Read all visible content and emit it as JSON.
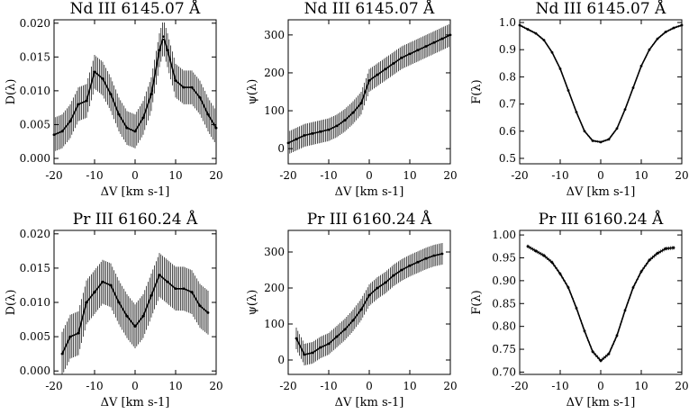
{
  "chart_data": [
    {
      "id": "nd-d",
      "type": "line",
      "title": "Nd III 6145.07 Å",
      "xlabel": "ΔV [km s-1]",
      "ylabel": "D(λ)",
      "xlim": [
        -20,
        20
      ],
      "ylim": [
        -0.0008,
        0.0205
      ],
      "xticks": [
        "-20",
        "-10",
        "0",
        "10",
        "20"
      ],
      "xtick_values": [
        -20,
        -10,
        0,
        10,
        20
      ],
      "yticks": [
        "0.000",
        "0.005",
        "0.010",
        "0.015",
        "0.020"
      ],
      "ytick_values": [
        0,
        0.005,
        0.01,
        0.015,
        0.02
      ],
      "x": [
        -20,
        -18,
        -16,
        -14,
        -12,
        -10,
        -8,
        -6,
        -4,
        -2,
        0,
        2,
        4,
        6,
        7,
        8,
        10,
        12,
        14,
        16,
        18,
        20
      ],
      "y": [
        0.0035,
        0.004,
        0.0055,
        0.008,
        0.0085,
        0.0128,
        0.0118,
        0.0095,
        0.0065,
        0.0045,
        0.004,
        0.006,
        0.0095,
        0.016,
        0.018,
        0.016,
        0.0115,
        0.0105,
        0.0105,
        0.009,
        0.0065,
        0.0045
      ],
      "err": 0.0025
    },
    {
      "id": "nd-psi",
      "type": "line",
      "title": "Nd III 6145.07 Å",
      "xlabel": "ΔV [km s-1]",
      "ylabel": "ψ(λ)",
      "xlim": [
        -20,
        20
      ],
      "ylim": [
        -40,
        340
      ],
      "xticks": [
        "-20",
        "-10",
        "0",
        "10",
        "20"
      ],
      "xtick_values": [
        -20,
        -10,
        0,
        10,
        20
      ],
      "yticks": [
        "0",
        "100",
        "200",
        "300"
      ],
      "ytick_values": [
        0,
        100,
        200,
        300
      ],
      "x": [
        -20,
        -18,
        -16,
        -14,
        -12,
        -10,
        -8,
        -6,
        -4,
        -2,
        -1,
        0,
        2,
        4,
        6,
        8,
        10,
        12,
        14,
        16,
        18,
        20
      ],
      "y": [
        15,
        25,
        35,
        40,
        45,
        50,
        60,
        75,
        95,
        120,
        150,
        180,
        195,
        210,
        225,
        240,
        250,
        260,
        270,
        280,
        290,
        300
      ],
      "err": 30
    },
    {
      "id": "nd-f",
      "type": "line",
      "title": "Nd III 6145.07 Å",
      "xlabel": "ΔV [km s-1]",
      "ylabel": "F(λ)",
      "xlim": [
        -20,
        20
      ],
      "ylim": [
        0.48,
        1.01
      ],
      "xticks": [
        "-20",
        "-10",
        "0",
        "10",
        "20"
      ],
      "xtick_values": [
        -20,
        -10,
        0,
        10,
        20
      ],
      "yticks": [
        "0.5",
        "0.6",
        "0.7",
        "0.8",
        "0.9",
        "1.0"
      ],
      "ytick_values": [
        0.5,
        0.6,
        0.7,
        0.8,
        0.9,
        1.0
      ],
      "x": [
        -20,
        -18,
        -16,
        -14,
        -12,
        -10,
        -8,
        -6,
        -4,
        -2,
        0,
        2,
        4,
        6,
        8,
        10,
        12,
        14,
        16,
        18,
        20
      ],
      "y": [
        0.99,
        0.975,
        0.96,
        0.935,
        0.89,
        0.83,
        0.75,
        0.67,
        0.6,
        0.565,
        0.56,
        0.57,
        0.61,
        0.68,
        0.76,
        0.84,
        0.9,
        0.94,
        0.965,
        0.98,
        0.99
      ],
      "err": 0.004
    },
    {
      "id": "pr-d",
      "type": "line",
      "title": "Pr III 6160.24 Å",
      "xlabel": "ΔV [km s-1]",
      "ylabel": "D(λ)",
      "xlim": [
        -20,
        20
      ],
      "ylim": [
        -0.0005,
        0.0205
      ],
      "xticks": [
        "-20",
        "-10",
        "0",
        "10",
        "20"
      ],
      "xtick_values": [
        -20,
        -10,
        0,
        10,
        20
      ],
      "yticks": [
        "0.000",
        "0.005",
        "0.010",
        "0.015",
        "0.020"
      ],
      "ytick_values": [
        0,
        0.005,
        0.01,
        0.015,
        0.02
      ],
      "x": [
        -18,
        -16,
        -14,
        -12,
        -10,
        -8,
        -6,
        -4,
        -2,
        0,
        2,
        4,
        6,
        8,
        10,
        12,
        14,
        16,
        18
      ],
      "y": [
        0.0025,
        0.005,
        0.0055,
        0.01,
        0.0115,
        0.013,
        0.0125,
        0.01,
        0.008,
        0.0065,
        0.008,
        0.011,
        0.014,
        0.013,
        0.012,
        0.012,
        0.0115,
        0.0095,
        0.0085
      ],
      "err": 0.0032
    },
    {
      "id": "pr-psi",
      "type": "line",
      "title": "Pr III 6160.24 Å",
      "xlabel": "ΔV [km s-1]",
      "ylabel": "ψ(λ)",
      "xlim": [
        -20,
        20
      ],
      "ylim": [
        -40,
        360
      ],
      "xticks": [
        "-20",
        "-10",
        "0",
        "10",
        "20"
      ],
      "xtick_values": [
        -20,
        -10,
        0,
        10,
        20
      ],
      "yticks": [
        "0",
        "100",
        "200",
        "300"
      ],
      "ytick_values": [
        0,
        100,
        200,
        300
      ],
      "x": [
        -18,
        -16,
        -14,
        -12,
        -10,
        -8,
        -6,
        -4,
        -2,
        0,
        2,
        4,
        6,
        8,
        10,
        12,
        14,
        16,
        18
      ],
      "y": [
        60,
        15,
        20,
        35,
        45,
        65,
        85,
        110,
        140,
        180,
        200,
        215,
        235,
        250,
        262,
        272,
        282,
        290,
        295
      ],
      "err": 30
    },
    {
      "id": "pr-f",
      "type": "line",
      "title": "Pr III 6160.24 Å",
      "xlabel": "ΔV [km s-1]",
      "ylabel": "F(λ)",
      "xlim": [
        -20,
        20
      ],
      "ylim": [
        0.695,
        1.01
      ],
      "xticks": [
        "-20",
        "-10",
        "0",
        "10",
        "20"
      ],
      "xtick_values": [
        -20,
        -10,
        0,
        10,
        20
      ],
      "yticks": [
        "0.70",
        "0.75",
        "0.80",
        "0.85",
        "0.90",
        "0.95",
        "1.00"
      ],
      "ytick_values": [
        0.7,
        0.75,
        0.8,
        0.85,
        0.9,
        0.95,
        1.0
      ],
      "x": [
        -18,
        -16,
        -14,
        -12,
        -10,
        -8,
        -6,
        -4,
        -2,
        0,
        2,
        4,
        6,
        8,
        10,
        12,
        14,
        16,
        18
      ],
      "y": [
        0.975,
        0.965,
        0.955,
        0.94,
        0.915,
        0.885,
        0.84,
        0.79,
        0.745,
        0.725,
        0.74,
        0.78,
        0.835,
        0.885,
        0.92,
        0.945,
        0.96,
        0.97,
        0.972
      ],
      "err": 0.004
    }
  ]
}
